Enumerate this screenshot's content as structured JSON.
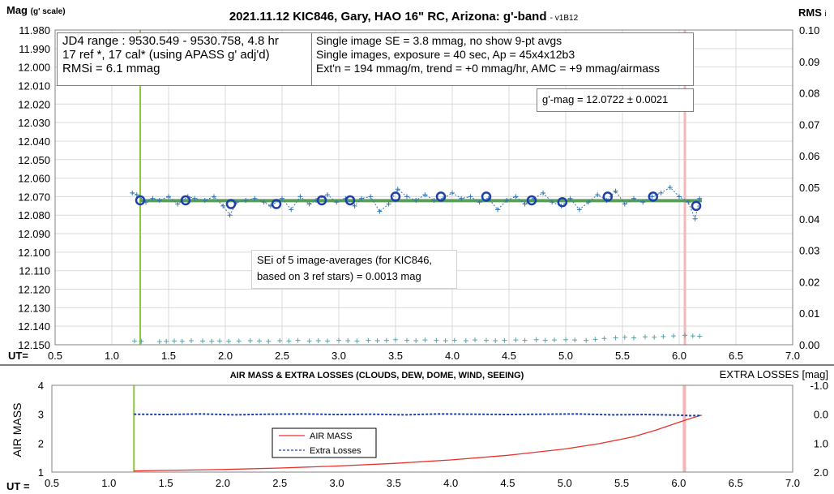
{
  "chart_data": [
    {
      "type": "scatter",
      "title": "2021.11.12 KIC846, Gary, HAO 16\" RC, Arizona: g'-band",
      "title_suffix": "- v1B12",
      "ylabel": "Mag",
      "ylabel_sub": "(g' scale)",
      "y2label": "RMS",
      "y2label_sub": "i",
      "xlabel": "UT=",
      "xlim": [
        0.5,
        7.0
      ],
      "ylim": [
        11.98,
        12.15
      ],
      "y_inverted": true,
      "y2lim": [
        0.0,
        0.1
      ],
      "xticks": [
        "0.5",
        "1.0",
        "1.5",
        "2.0",
        "2.5",
        "3.0",
        "3.5",
        "4.0",
        "4.5",
        "5.0",
        "5.5",
        "6.0",
        "6.5",
        "7.0"
      ],
      "yticks": [
        "11.980",
        "11.990",
        "12.000",
        "12.010",
        "12.020",
        "12.030",
        "12.040",
        "12.050",
        "12.060",
        "12.070",
        "12.080",
        "12.090",
        "12.100",
        "12.110",
        "12.120",
        "12.130",
        "12.140",
        "12.150"
      ],
      "y2ticks": [
        "0.10",
        "0.09",
        "0.08",
        "0.07",
        "0.06",
        "0.05",
        "0.04",
        "0.03",
        "0.02",
        "0.01",
        "0.00"
      ],
      "grid": true,
      "vertical_lines": [
        {
          "x": 1.25,
          "color": "#8cc63f"
        },
        {
          "x": 6.05,
          "color": "#f4b6b6"
        }
      ],
      "fit_line": {
        "y": 12.0722,
        "x": [
          1.25,
          6.2
        ],
        "color": "#5a9e5a"
      },
      "annotations": {
        "info_box": [
          "JD4 range : 9530.549 - 9530.758,  4.8  hr",
          "17 ref *, 17 cal* (using APASS g' adj'd)",
          "RMSi = 6.1 mmag"
        ],
        "params_box": [
          "Single image SE = 3.8 mmag, no show  9-pt avgs",
          "Single images, exposure = 40 sec, Ap = 45x4x12b3",
          "Ext'n = 194 mmag/m, trend = +0 mmag/hr, AMC = +9 mmag/airmass"
        ],
        "result_box": "g'-mag = 12.0722 ± 0.0021",
        "sei_box": [
          "SEi of 5 image-averages (for KIC846,",
          "based on 3 ref stars) = 0.0013 mag"
        ]
      },
      "series": [
        {
          "type": "scatter",
          "marker": "circle",
          "color": "#1f3fa8",
          "x": [
            1.25,
            1.65,
            2.05,
            2.45,
            2.85,
            3.1,
            3.5,
            3.9,
            4.3,
            4.7,
            4.97,
            5.37,
            5.77,
            6.15
          ],
          "y": [
            12.072,
            12.072,
            12.074,
            12.074,
            12.072,
            12.072,
            12.07,
            12.07,
            12.07,
            12.072,
            12.073,
            12.07,
            12.07,
            12.075
          ]
        },
        {
          "type": "line",
          "style": "dashed-plus",
          "color": "#2e75b6",
          "x": [
            1.18,
            1.22,
            1.3,
            1.36,
            1.42,
            1.5,
            1.58,
            1.67,
            1.73,
            1.82,
            1.9,
            1.98,
            2.04,
            2.1,
            2.18,
            2.26,
            2.34,
            2.4,
            2.5,
            2.58,
            2.66,
            2.74,
            2.8,
            2.9,
            2.98,
            3.06,
            3.14,
            3.2,
            3.28,
            3.36,
            3.44,
            3.52,
            3.6,
            3.68,
            3.76,
            3.84,
            3.92,
            4.0,
            4.08,
            4.16,
            4.24,
            4.32,
            4.4,
            4.48,
            4.56,
            4.64,
            4.72,
            4.8,
            4.88,
            4.96,
            5.04,
            5.12,
            5.2,
            5.28,
            5.36,
            5.44,
            5.52,
            5.6,
            5.68,
            5.76,
            5.84,
            5.92,
            6.0,
            6.08,
            6.14,
            6.18
          ],
          "y": [
            12.068,
            12.069,
            12.073,
            12.071,
            12.072,
            12.07,
            12.074,
            12.07,
            12.071,
            12.072,
            12.07,
            12.075,
            12.08,
            12.073,
            12.072,
            12.071,
            12.073,
            12.075,
            12.071,
            12.077,
            12.07,
            12.074,
            12.072,
            12.069,
            12.073,
            12.071,
            12.075,
            12.071,
            12.07,
            12.078,
            12.074,
            12.066,
            12.07,
            12.072,
            12.069,
            12.072,
            12.071,
            12.068,
            12.071,
            12.07,
            12.073,
            12.071,
            12.077,
            12.072,
            12.07,
            12.074,
            12.071,
            12.068,
            12.073,
            12.075,
            12.071,
            12.077,
            12.073,
            12.069,
            12.072,
            12.067,
            12.074,
            12.071,
            12.073,
            12.07,
            12.068,
            12.065,
            12.07,
            12.073,
            12.082,
            12.071
          ]
        },
        {
          "type": "scatter",
          "marker": "plus",
          "axis": "y2",
          "name": "RMSi",
          "color": "#5aa0a8",
          "x": [
            1.2,
            1.26,
            1.42,
            1.48,
            1.55,
            1.62,
            1.7,
            1.8,
            1.88,
            1.95,
            2.03,
            2.12,
            2.22,
            2.3,
            2.38,
            2.48,
            2.56,
            2.64,
            2.74,
            2.82,
            2.9,
            3.0,
            3.08,
            3.16,
            3.26,
            3.34,
            3.42,
            3.5,
            3.6,
            3.68,
            3.76,
            3.86,
            3.94,
            4.02,
            4.12,
            4.2,
            4.3,
            4.38,
            4.46,
            4.56,
            4.64,
            4.74,
            4.82,
            4.9,
            5.0,
            5.08,
            5.18,
            5.26,
            5.34,
            5.44,
            5.52,
            5.6,
            5.7,
            5.78,
            5.86,
            5.95,
            6.05,
            6.12,
            6.18
          ],
          "y": [
            0.0012,
            0.0011,
            0.001,
            0.0011,
            0.0012,
            0.0011,
            0.0013,
            0.0012,
            0.0011,
            0.0012,
            0.0011,
            0.0012,
            0.0013,
            0.0012,
            0.0011,
            0.0013,
            0.0012,
            0.0014,
            0.0012,
            0.0013,
            0.0012,
            0.0014,
            0.0013,
            0.0012,
            0.0014,
            0.0013,
            0.0014,
            0.0016,
            0.0014,
            0.0013,
            0.0015,
            0.0014,
            0.0013,
            0.0014,
            0.0013,
            0.0015,
            0.0014,
            0.0013,
            0.0014,
            0.0015,
            0.0014,
            0.0016,
            0.0014,
            0.0015,
            0.0016,
            0.0015,
            0.0014,
            0.0017,
            0.002,
            0.0022,
            0.0024,
            0.0022,
            0.0025,
            0.0024,
            0.0026,
            0.0028,
            0.003,
            0.0028,
            0.0027
          ]
        }
      ]
    },
    {
      "type": "line",
      "title": "AIR MASS & EXTRA LOSSES (CLOUDS, DEW, DOME, WIND, SEEING)",
      "ylabel": "AIR MASS",
      "y2label": "EXTRA LOSSES [mag]",
      "xlabel": "UT =",
      "xlim": [
        0.5,
        7.0
      ],
      "ylim": [
        1,
        4
      ],
      "y2lim": [
        -1.0,
        2.0
      ],
      "y2_inverted": true,
      "xticks": [
        "0.5",
        "1.0",
        "1.5",
        "2.0",
        "2.5",
        "3.0",
        "3.5",
        "4.0",
        "4.5",
        "5.0",
        "5.5",
        "6.0",
        "6.5",
        "7.0"
      ],
      "yticks": [
        "4",
        "3",
        "2",
        "1"
      ],
      "y2ticks": [
        "-1.0",
        "0.0",
        "1.0",
        "2.0"
      ],
      "grid": false,
      "legend_position": "center-left",
      "vertical_lines": [
        {
          "x": 1.22,
          "color": "#8cc63f"
        },
        {
          "x": 6.05,
          "color": "#f4b6b6"
        }
      ],
      "series": [
        {
          "name": "AIR MASS",
          "color": "#e8302a",
          "style": "solid",
          "x": [
            1.22,
            1.5,
            2.0,
            2.5,
            3.0,
            3.5,
            4.0,
            4.5,
            5.0,
            5.3,
            5.6,
            5.8,
            6.0,
            6.1,
            6.2
          ],
          "y": [
            1.04,
            1.06,
            1.09,
            1.14,
            1.21,
            1.3,
            1.42,
            1.58,
            1.8,
            1.98,
            2.22,
            2.45,
            2.72,
            2.85,
            2.97
          ]
        },
        {
          "name": "Extra Losses",
          "color": "#1f3fa8",
          "style": "dashed",
          "axis": "y2",
          "x": [
            1.22,
            1.5,
            1.8,
            2.1,
            2.4,
            2.7,
            3.0,
            3.3,
            3.6,
            3.9,
            4.2,
            4.5,
            4.8,
            5.1,
            5.4,
            5.7,
            6.0,
            6.1,
            6.2
          ],
          "y": [
            0.0,
            0.01,
            -0.01,
            0.02,
            0.0,
            -0.01,
            0.01,
            0.0,
            0.02,
            -0.01,
            0.0,
            0.01,
            0.0,
            -0.01,
            0.02,
            0.01,
            0.03,
            0.05,
            0.04
          ]
        }
      ]
    }
  ]
}
